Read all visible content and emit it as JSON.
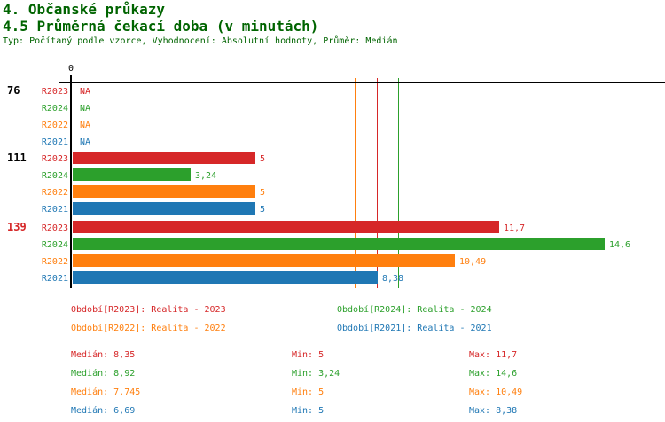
{
  "header": {
    "title": "4. Občanské průkazy",
    "subtitle": "4.5 Průměrná čekací doba (v minutách)",
    "meta": "Typ: Počítaný podle vzorce, Vyhodnocení: Absolutní hodnoty, Průměr: Medián"
  },
  "colors": {
    "R2023": "#d62728",
    "R2024": "#2ca02c",
    "R2022": "#ff7f0e",
    "R2021": "#1f77b4",
    "title": "#006400",
    "axis": "#000000",
    "group_label_default": "#000000",
    "group_label_highlight": "#d62728"
  },
  "chart_data": {
    "type": "bar",
    "orientation": "horizontal",
    "axis": {
      "zero_label": "0",
      "xlim": [
        0,
        16.2
      ],
      "grid": false
    },
    "series_order": [
      "R2023",
      "R2024",
      "R2022",
      "R2021"
    ],
    "groups": [
      {
        "label": "76",
        "label_color": "#000000",
        "bars": [
          {
            "series": "R2023",
            "value": null,
            "display": "NA"
          },
          {
            "series": "R2024",
            "value": null,
            "display": "NA"
          },
          {
            "series": "R2022",
            "value": null,
            "display": "NA"
          },
          {
            "series": "R2021",
            "value": null,
            "display": "NA"
          }
        ]
      },
      {
        "label": "111",
        "label_color": "#000000",
        "bars": [
          {
            "series": "R2023",
            "value": 5,
            "display": "5"
          },
          {
            "series": "R2024",
            "value": 3.24,
            "display": "3,24"
          },
          {
            "series": "R2022",
            "value": 5,
            "display": "5"
          },
          {
            "series": "R2021",
            "value": 5,
            "display": "5"
          }
        ]
      },
      {
        "label": "139",
        "label_color": "#d62728",
        "bars": [
          {
            "series": "R2023",
            "value": 11.7,
            "display": "11,7"
          },
          {
            "series": "R2024",
            "value": 14.6,
            "display": "14,6"
          },
          {
            "series": "R2022",
            "value": 10.49,
            "display": "10,49"
          },
          {
            "series": "R2021",
            "value": 8.38,
            "display": "8,38"
          }
        ]
      }
    ],
    "median_lines": [
      {
        "series": "R2023",
        "value": 8.35
      },
      {
        "series": "R2024",
        "value": 8.92
      },
      {
        "series": "R2022",
        "value": 7.745
      },
      {
        "series": "R2021",
        "value": 6.69
      }
    ],
    "legend_position": "bottom",
    "title": "4.5 Průměrná čekací doba (v minutách)"
  },
  "legend": [
    {
      "series": "R2023",
      "label": "Období[R2023]: Realita - 2023"
    },
    {
      "series": "R2024",
      "label": "Období[R2024]: Realita - 2024"
    },
    {
      "series": "R2022",
      "label": "Období[R2022]: Realita - 2022"
    },
    {
      "series": "R2021",
      "label": "Období[R2021]: Realita - 2021"
    }
  ],
  "stats": [
    {
      "series": "R2023",
      "median": "Medián: 8,35",
      "min": "Min: 5",
      "max": "Max: 11,7"
    },
    {
      "series": "R2024",
      "median": "Medián: 8,92",
      "min": "Min: 3,24",
      "max": "Max: 14,6"
    },
    {
      "series": "R2022",
      "median": "Medián: 7,745",
      "min": "Min: 5",
      "max": "Max: 10,49"
    },
    {
      "series": "R2021",
      "median": "Medián: 6,69",
      "min": "Min: 5",
      "max": "Max: 8,38"
    }
  ]
}
